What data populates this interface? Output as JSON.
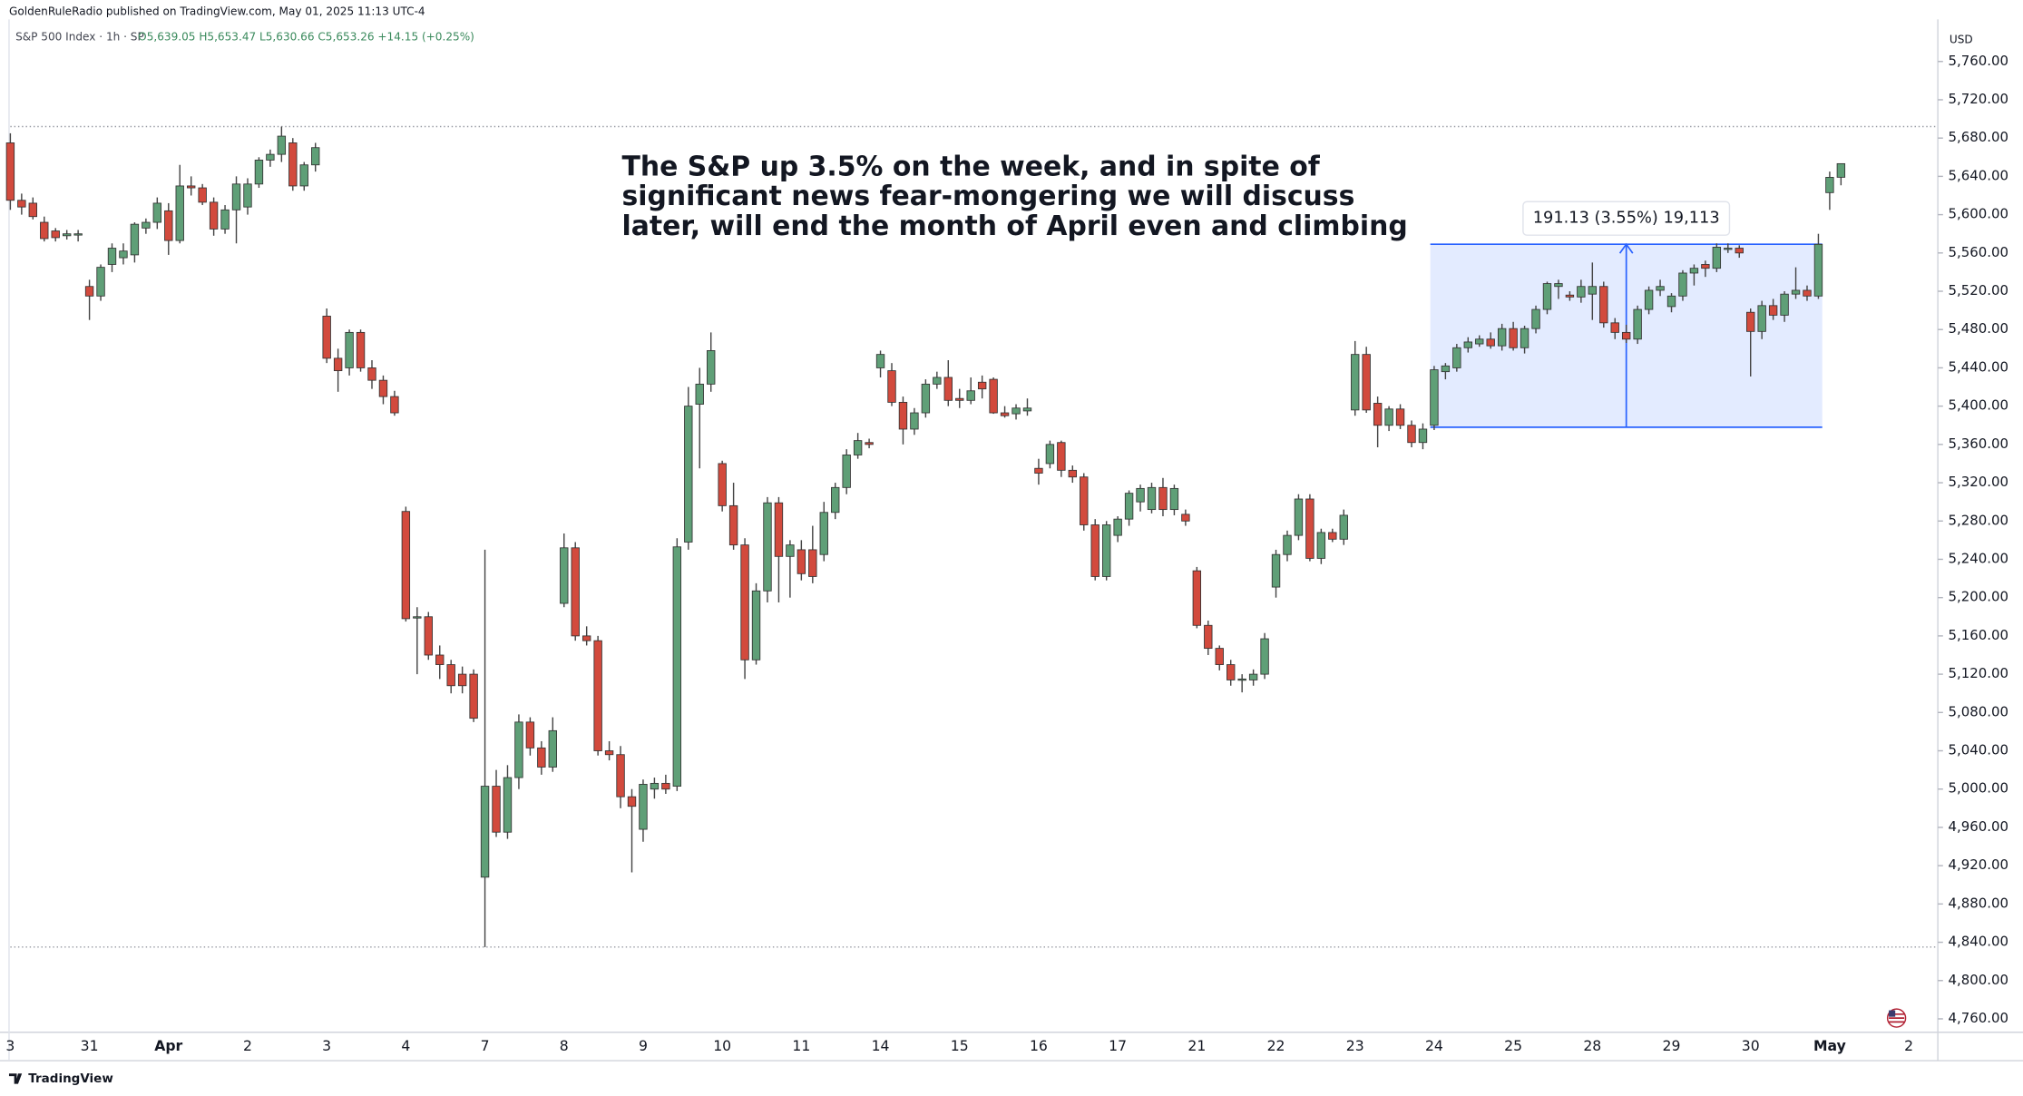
{
  "header": {
    "publisher": "GoldenRuleRadio published on TradingView.com, May 01, 2025 11:13 UTC-4"
  },
  "footer": {
    "logo": "TradingView"
  },
  "chart_data": {
    "type": "candlestick",
    "title": "S&P 500 Index · 1h · SP",
    "ohlc_label": "O5,639.05  H5,653.47  L5,630.66  C5,653.26  +14.15 (+0.25%)",
    "currency": "USD",
    "annotation": [
      "The S&P up 3.5% on the week, and in spite of",
      "significant news fear-mongering we will discuss",
      "later, will end the month of April even and climbing"
    ],
    "up_color": "#5f9f77",
    "down_color": "#d24a3d",
    "grid": false,
    "measure": {
      "label": "191.13 (3.55%) 19,113",
      "low": 5378,
      "high": 5569.13,
      "from": 126,
      "to": 160,
      "color": "#2962ff"
    },
    "ylim": [
      4746,
      5804
    ],
    "yticks": [
      {
        "value": 4760,
        "label": "4,760.00"
      },
      {
        "value": 4800,
        "label": "4,800.00"
      },
      {
        "value": 4840,
        "label": "4,840.00"
      },
      {
        "value": 4880,
        "label": "4,880.00"
      },
      {
        "value": 4920,
        "label": "4,920.00"
      },
      {
        "value": 4960,
        "label": "4,960.00"
      },
      {
        "value": 5000,
        "label": "5,000.00"
      },
      {
        "value": 5040,
        "label": "5,040.00"
      },
      {
        "value": 5080,
        "label": "5,080.00"
      },
      {
        "value": 5120,
        "label": "5,120.00"
      },
      {
        "value": 5160,
        "label": "5,160.00"
      },
      {
        "value": 5200,
        "label": "5,200.00"
      },
      {
        "value": 5240,
        "label": "5,240.00"
      },
      {
        "value": 5280,
        "label": "5,280.00"
      },
      {
        "value": 5320,
        "label": "5,320.00"
      },
      {
        "value": 5360,
        "label": "5,360.00"
      },
      {
        "value": 5400,
        "label": "5,400.00"
      },
      {
        "value": 5440,
        "label": "5,440.00"
      },
      {
        "value": 5480,
        "label": "5,480.00"
      },
      {
        "value": 5520,
        "label": "5,520.00"
      },
      {
        "value": 5560,
        "label": "5,560.00"
      },
      {
        "value": 5600,
        "label": "5,600.00"
      },
      {
        "value": 5640,
        "label": "5,640.00"
      },
      {
        "value": 5680,
        "label": "5,680.00"
      },
      {
        "value": 5720,
        "label": "5,720.00"
      },
      {
        "value": 5760,
        "label": "5,760.00"
      }
    ],
    "categories": [
      "3",
      null,
      null,
      null,
      null,
      null,
      null,
      "31",
      null,
      null,
      null,
      null,
      null,
      null,
      "Apr",
      null,
      null,
      null,
      null,
      null,
      null,
      "2",
      null,
      null,
      null,
      null,
      null,
      null,
      "3",
      null,
      null,
      null,
      null,
      null,
      null,
      "4",
      null,
      null,
      null,
      null,
      null,
      null,
      "7",
      null,
      null,
      null,
      null,
      null,
      null,
      "8",
      null,
      null,
      null,
      null,
      null,
      null,
      "9",
      null,
      null,
      null,
      null,
      null,
      null,
      "10",
      null,
      null,
      null,
      null,
      null,
      null,
      "11",
      null,
      null,
      null,
      null,
      null,
      null,
      "14",
      null,
      null,
      null,
      null,
      null,
      null,
      "15",
      null,
      null,
      null,
      null,
      null,
      null,
      "16",
      null,
      null,
      null,
      null,
      null,
      null,
      "17",
      null,
      null,
      null,
      null,
      null,
      null,
      "21",
      null,
      null,
      null,
      null,
      null,
      null,
      "22",
      null,
      null,
      null,
      null,
      null,
      null,
      "23",
      null,
      null,
      null,
      null,
      null,
      null,
      "24",
      null,
      null,
      null,
      null,
      null,
      null,
      "25",
      null,
      null,
      null,
      null,
      null,
      null,
      "28",
      null,
      null,
      null,
      null,
      null,
      null,
      "29",
      null,
      null,
      null,
      null,
      null,
      null,
      "30",
      null,
      null,
      null,
      null,
      null,
      null,
      "May",
      null,
      null,
      null,
      null,
      null,
      null,
      "2",
      null,
      null
    ],
    "candles": [
      [
        5675,
        5685,
        5605,
        5615
      ],
      [
        5615,
        5622,
        5600,
        5608
      ],
      [
        5612,
        5618,
        5595,
        5598
      ],
      [
        5592,
        5598,
        5572,
        5575
      ],
      [
        5583,
        5586,
        5572,
        5576
      ],
      [
        5578,
        5584,
        5574,
        5580
      ],
      [
        5579,
        5584,
        5572,
        5580
      ],
      [
        5525,
        5532,
        5490,
        5515
      ],
      [
        5515,
        5548,
        5510,
        5545
      ],
      [
        5548,
        5570,
        5540,
        5565
      ],
      [
        5555,
        5570,
        5548,
        5562
      ],
      [
        5558,
        5592,
        5550,
        5590
      ],
      [
        5586,
        5596,
        5580,
        5592
      ],
      [
        5592,
        5618,
        5585,
        5612
      ],
      [
        5604,
        5612,
        5558,
        5573
      ],
      [
        5573,
        5652,
        5570,
        5630
      ],
      [
        5630,
        5640,
        5620,
        5628
      ],
      [
        5628,
        5632,
        5610,
        5613
      ],
      [
        5613,
        5618,
        5578,
        5585
      ],
      [
        5585,
        5610,
        5580,
        5605
      ],
      [
        5605,
        5640,
        5570,
        5632
      ],
      [
        5608,
        5638,
        5600,
        5632
      ],
      [
        5632,
        5660,
        5628,
        5657
      ],
      [
        5657,
        5668,
        5650,
        5663
      ],
      [
        5663,
        5692,
        5655,
        5682
      ],
      [
        5675,
        5680,
        5625,
        5630
      ],
      [
        5630,
        5655,
        5625,
        5652
      ],
      [
        5652,
        5675,
        5645,
        5670
      ],
      [
        5494,
        5502,
        5445,
        5450
      ],
      [
        5450,
        5460,
        5415,
        5437
      ],
      [
        5440,
        5480,
        5432,
        5477
      ],
      [
        5477,
        5480,
        5436,
        5440
      ],
      [
        5440,
        5448,
        5418,
        5427
      ],
      [
        5427,
        5432,
        5402,
        5410
      ],
      [
        5410,
        5416,
        5390,
        5393
      ],
      [
        5290,
        5295,
        5175,
        5178
      ],
      [
        5180,
        5190,
        5120,
        5180
      ],
      [
        5180,
        5185,
        5135,
        5140
      ],
      [
        5140,
        5150,
        5115,
        5130
      ],
      [
        5130,
        5135,
        5100,
        5108
      ],
      [
        5120,
        5128,
        5100,
        5108
      ],
      [
        5120,
        5125,
        5070,
        5074
      ],
      [
        4908,
        5250,
        4835,
        5003
      ],
      [
        5003,
        5020,
        4950,
        4955
      ],
      [
        4955,
        5025,
        4948,
        5012
      ],
      [
        5012,
        5078,
        5000,
        5070
      ],
      [
        5070,
        5075,
        5035,
        5043
      ],
      [
        5043,
        5050,
        5015,
        5023
      ],
      [
        5023,
        5075,
        5018,
        5061
      ],
      [
        5194,
        5267,
        5190,
        5252
      ],
      [
        5252,
        5258,
        5155,
        5160
      ],
      [
        5160,
        5170,
        5150,
        5155
      ],
      [
        5155,
        5160,
        5035,
        5040
      ],
      [
        5040,
        5050,
        5030,
        5036
      ],
      [
        5036,
        5045,
        4980,
        4992
      ],
      [
        4992,
        5000,
        4913,
        4982
      ],
      [
        4958,
        5010,
        4945,
        5005
      ],
      [
        5000,
        5012,
        4990,
        5006
      ],
      [
        5006,
        5015,
        4995,
        5000
      ],
      [
        5003,
        5262,
        4998,
        5253
      ],
      [
        5258,
        5420,
        5250,
        5400
      ],
      [
        5402,
        5440,
        5335,
        5423
      ],
      [
        5423,
        5477,
        5415,
        5458
      ],
      [
        5340,
        5343,
        5290,
        5296
      ],
      [
        5296,
        5320,
        5250,
        5255
      ],
      [
        5255,
        5262,
        5115,
        5135
      ],
      [
        5135,
        5215,
        5130,
        5207
      ],
      [
        5207,
        5305,
        5195,
        5299
      ],
      [
        5299,
        5305,
        5195,
        5243
      ],
      [
        5243,
        5260,
        5200,
        5255
      ],
      [
        5250,
        5260,
        5218,
        5225
      ],
      [
        5250,
        5275,
        5215,
        5222
      ],
      [
        5245,
        5300,
        5238,
        5289
      ],
      [
        5289,
        5320,
        5282,
        5315
      ],
      [
        5315,
        5355,
        5308,
        5349
      ],
      [
        5349,
        5372,
        5345,
        5364
      ],
      [
        5362,
        5366,
        5356,
        5360
      ],
      [
        5440,
        5458,
        5430,
        5454
      ],
      [
        5437,
        5445,
        5400,
        5404
      ],
      [
        5404,
        5410,
        5360,
        5376
      ],
      [
        5376,
        5398,
        5370,
        5393
      ],
      [
        5393,
        5428,
        5388,
        5423
      ],
      [
        5423,
        5436,
        5418,
        5430
      ],
      [
        5430,
        5448,
        5400,
        5406
      ],
      [
        5408,
        5418,
        5398,
        5406
      ],
      [
        5406,
        5430,
        5402,
        5416
      ],
      [
        5425,
        5432,
        5408,
        5418
      ],
      [
        5428,
        5430,
        5392,
        5393
      ],
      [
        5393,
        5400,
        5388,
        5390
      ],
      [
        5392,
        5402,
        5386,
        5398
      ],
      [
        5395,
        5408,
        5390,
        5398
      ],
      [
        5335,
        5345,
        5318,
        5330
      ],
      [
        5340,
        5364,
        5335,
        5360
      ],
      [
        5362,
        5364,
        5326,
        5333
      ],
      [
        5333,
        5338,
        5320,
        5326
      ],
      [
        5326,
        5330,
        5270,
        5276
      ],
      [
        5276,
        5282,
        5218,
        5222
      ],
      [
        5222,
        5280,
        5218,
        5276
      ],
      [
        5265,
        5285,
        5258,
        5282
      ],
      [
        5282,
        5312,
        5275,
        5309
      ],
      [
        5300,
        5318,
        5290,
        5314
      ],
      [
        5292,
        5320,
        5288,
        5315
      ],
      [
        5315,
        5325,
        5285,
        5292
      ],
      [
        5292,
        5318,
        5286,
        5314
      ],
      [
        5287,
        5292,
        5275,
        5280
      ],
      [
        5228,
        5232,
        5168,
        5171
      ],
      [
        5171,
        5176,
        5140,
        5147
      ],
      [
        5147,
        5150,
        5124,
        5130
      ],
      [
        5130,
        5135,
        5108,
        5114
      ],
      [
        5114,
        5120,
        5101,
        5115
      ],
      [
        5114,
        5125,
        5108,
        5120
      ],
      [
        5120,
        5163,
        5115,
        5157
      ],
      [
        5211,
        5250,
        5200,
        5245
      ],
      [
        5245,
        5270,
        5238,
        5265
      ],
      [
        5265,
        5308,
        5260,
        5303
      ],
      [
        5303,
        5308,
        5238,
        5241
      ],
      [
        5241,
        5272,
        5235,
        5268
      ],
      [
        5268,
        5272,
        5258,
        5261
      ],
      [
        5261,
        5292,
        5255,
        5286
      ],
      [
        5396,
        5468,
        5390,
        5454
      ],
      [
        5454,
        5462,
        5393,
        5396
      ],
      [
        5403,
        5410,
        5357,
        5380
      ],
      [
        5380,
        5400,
        5374,
        5397
      ],
      [
        5397,
        5402,
        5376,
        5380
      ],
      [
        5380,
        5385,
        5357,
        5362
      ],
      [
        5362,
        5382,
        5355,
        5376
      ],
      [
        5380,
        5442,
        5375,
        5438
      ],
      [
        5436,
        5445,
        5428,
        5442
      ],
      [
        5440,
        5465,
        5436,
        5461
      ],
      [
        5461,
        5472,
        5456,
        5467
      ],
      [
        5465,
        5474,
        5462,
        5470
      ],
      [
        5470,
        5477,
        5460,
        5463
      ],
      [
        5463,
        5486,
        5458,
        5481
      ],
      [
        5481,
        5488,
        5458,
        5461
      ],
      [
        5461,
        5484,
        5455,
        5481
      ],
      [
        5481,
        5505,
        5476,
        5501
      ],
      [
        5501,
        5530,
        5496,
        5528
      ],
      [
        5525,
        5532,
        5512,
        5528
      ],
      [
        5516,
        5520,
        5510,
        5514
      ],
      [
        5514,
        5532,
        5508,
        5525
      ],
      [
        5517,
        5550,
        5490,
        5525
      ],
      [
        5525,
        5530,
        5482,
        5487
      ],
      [
        5487,
        5492,
        5470,
        5477
      ],
      [
        5477,
        5485,
        5466,
        5470
      ],
      [
        5470,
        5505,
        5465,
        5501
      ],
      [
        5501,
        5525,
        5496,
        5521
      ],
      [
        5521,
        5532,
        5515,
        5525
      ],
      [
        5504,
        5518,
        5498,
        5515
      ],
      [
        5515,
        5542,
        5510,
        5539
      ],
      [
        5539,
        5548,
        5526,
        5544
      ],
      [
        5548,
        5552,
        5535,
        5544
      ],
      [
        5544,
        5570,
        5540,
        5566
      ],
      [
        5564,
        5570,
        5560,
        5565
      ],
      [
        5565,
        5568,
        5555,
        5560
      ],
      [
        5498,
        5502,
        5431,
        5478
      ],
      [
        5478,
        5510,
        5470,
        5505
      ],
      [
        5505,
        5512,
        5490,
        5495
      ],
      [
        5495,
        5520,
        5488,
        5517
      ],
      [
        5517,
        5545,
        5512,
        5521
      ],
      [
        5521,
        5526,
        5510,
        5515
      ],
      [
        5515,
        5580,
        5512,
        5569
      ],
      [
        5623,
        5645,
        5605,
        5639
      ],
      [
        5639.05,
        5653.47,
        5630.66,
        5653.26
      ],
      null,
      null,
      null,
      null,
      null,
      null,
      null,
      null
    ]
  }
}
